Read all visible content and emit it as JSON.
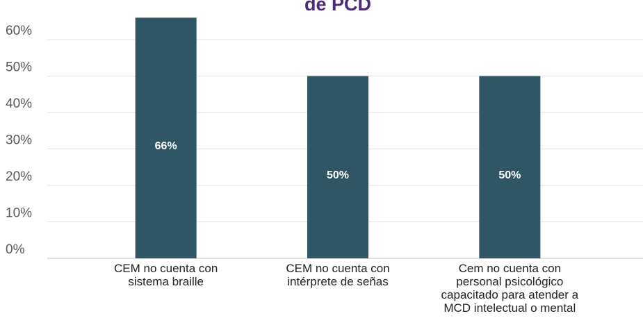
{
  "chart_data": {
    "type": "bar",
    "title": "de PCD",
    "categories": [
      "CEM no cuenta con sistema braille",
      "CEM no cuenta con intérprete de señas",
      "Cem no cuenta con personal psicológico capacitado para atender a MCD intelectual o mental"
    ],
    "values": [
      66,
      50,
      50
    ],
    "value_labels": [
      "66%",
      "50%",
      "50%"
    ],
    "color": "#2e5663",
    "ylim": [
      0,
      68
    ],
    "yticks": [
      {
        "value": 0,
        "label": "0%"
      },
      {
        "value": 10,
        "label": "10%"
      },
      {
        "value": 20,
        "label": "20%"
      },
      {
        "value": 30,
        "label": "30%"
      },
      {
        "value": 40,
        "label": "40%"
      },
      {
        "value": 50,
        "label": "50%"
      },
      {
        "value": 60,
        "label": "60%"
      }
    ],
    "grid": true
  }
}
